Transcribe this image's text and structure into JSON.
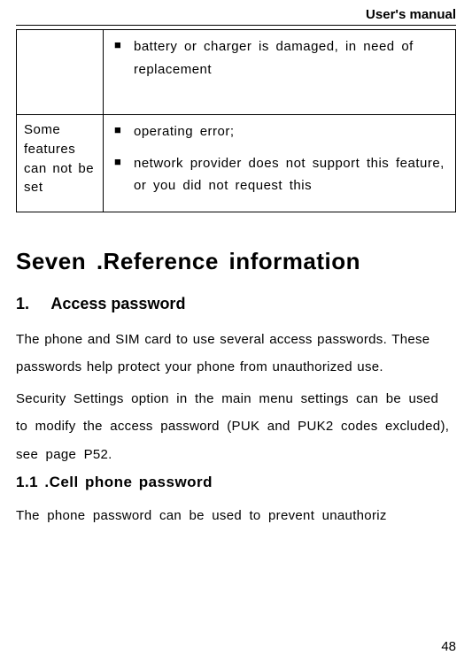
{
  "header": {
    "title": "User's manual"
  },
  "table": {
    "rows": [
      {
        "label": "",
        "items": [
          "battery or charger is damaged, in need of replacement"
        ]
      },
      {
        "label": "Some features can not be set",
        "items": [
          "operating error;",
          "network provider does not support this feature, or you did not request this"
        ]
      }
    ]
  },
  "section": {
    "title": "Seven .Reference information",
    "sub1": {
      "num": "1.",
      "title": "Access password",
      "para1": "The phone and SIM card to use several access passwords. These passwords help protect your phone from unauthorized use.",
      "para2": "Security Settings option in the main menu settings can be used to modify the access password (PUK and PUK2 codes excluded), see page P52."
    },
    "sub11": {
      "title": "1.1 .Cell phone password",
      "para": "The phone password can be used to prevent unauthoriz"
    }
  },
  "page_number": "48"
}
